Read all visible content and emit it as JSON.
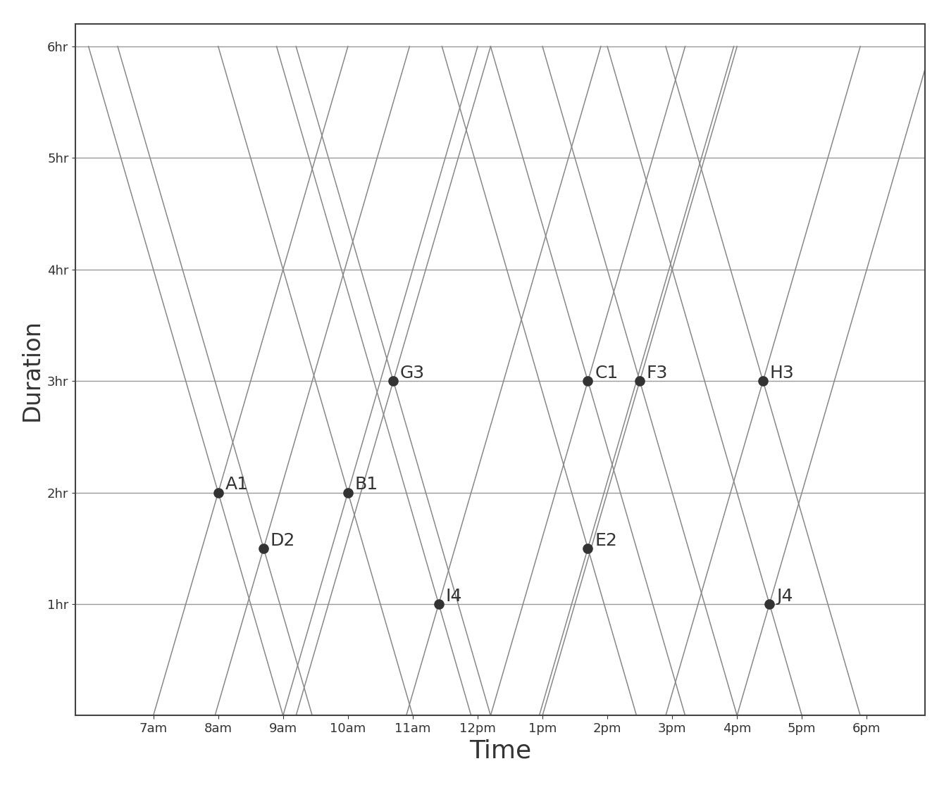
{
  "chart_data": {
    "type": "scatter",
    "x_label": "Time",
    "y_label": "Duration",
    "x": [
      8.0,
      8.7,
      10.0,
      10.7,
      11.4,
      13.7,
      13.7,
      14.5,
      16.4,
      16.5
    ],
    "values": [
      2,
      1.5,
      2,
      3,
      1,
      3,
      1.5,
      3,
      3,
      1
    ],
    "annotations": [
      "A1",
      "D2",
      "B1",
      "G3",
      "I4",
      "C1",
      "E2",
      "F3",
      "H3",
      "J4"
    ],
    "color": "#333333",
    "marker": "circle",
    "xlim": [
      5.8,
      18.9
    ],
    "ylim": [
      0,
      6.2
    ],
    "xticks": [
      {
        "value": 7,
        "label": "7am"
      },
      {
        "value": 8,
        "label": "8am"
      },
      {
        "value": 9,
        "label": "9am"
      },
      {
        "value": 10,
        "label": "10am"
      },
      {
        "value": 11,
        "label": "11am"
      },
      {
        "value": 12,
        "label": "12pm"
      },
      {
        "value": 13,
        "label": "1pm"
      },
      {
        "value": 14,
        "label": "2pm"
      },
      {
        "value": 15,
        "label": "3pm"
      },
      {
        "value": 16,
        "label": "4pm"
      },
      {
        "value": 17,
        "label": "5pm"
      },
      {
        "value": 18,
        "label": "6pm"
      }
    ],
    "yticks": [
      {
        "value": 1,
        "label": "1hr"
      },
      {
        "value": 2,
        "label": "2hr"
      },
      {
        "value": 3,
        "label": "3hr"
      },
      {
        "value": 4,
        "label": "4hr"
      },
      {
        "value": 5,
        "label": "5hr"
      },
      {
        "value": 6,
        "label": "6hr"
      }
    ],
    "grid": "y"
  }
}
